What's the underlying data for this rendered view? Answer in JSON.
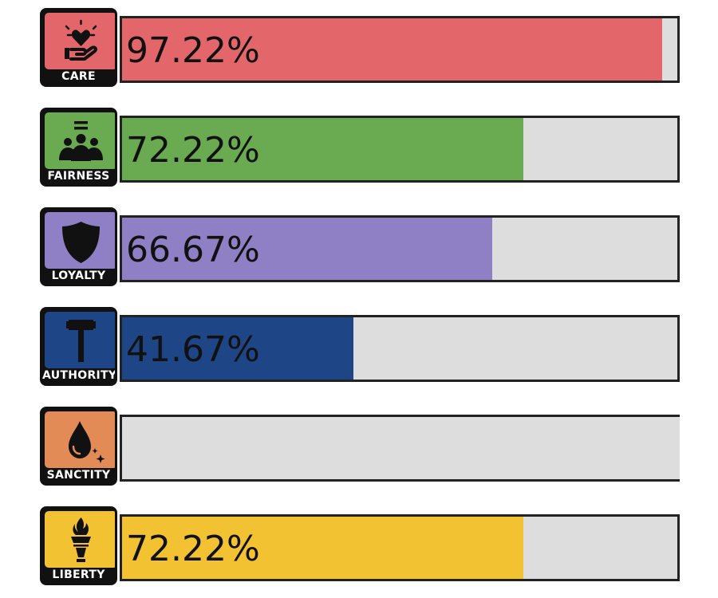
{
  "chart_data": {
    "type": "bar",
    "orientation": "horizontal",
    "xlim": [
      0,
      100
    ],
    "categories": [
      "CARE",
      "FAIRNESS",
      "LOYALTY",
      "AUTHORITY",
      "SANCTITY",
      "LIBERTY"
    ],
    "values": [
      97.22,
      72.22,
      66.67,
      41.67,
      0,
      72.22
    ],
    "value_labels": [
      "97.22%",
      "72.22%",
      "66.67%",
      "41.67%",
      "",
      "72.22%"
    ],
    "colors": [
      "#e3676a",
      "#6aaa50",
      "#8f7fc4",
      "#1e4687",
      "#e38b56",
      "#f2c232"
    ],
    "icons": [
      "heart-hand-icon",
      "people-group-icon",
      "shield-icon",
      "gavel-icon",
      "drop-sparkle-icon",
      "torch-icon"
    ]
  }
}
